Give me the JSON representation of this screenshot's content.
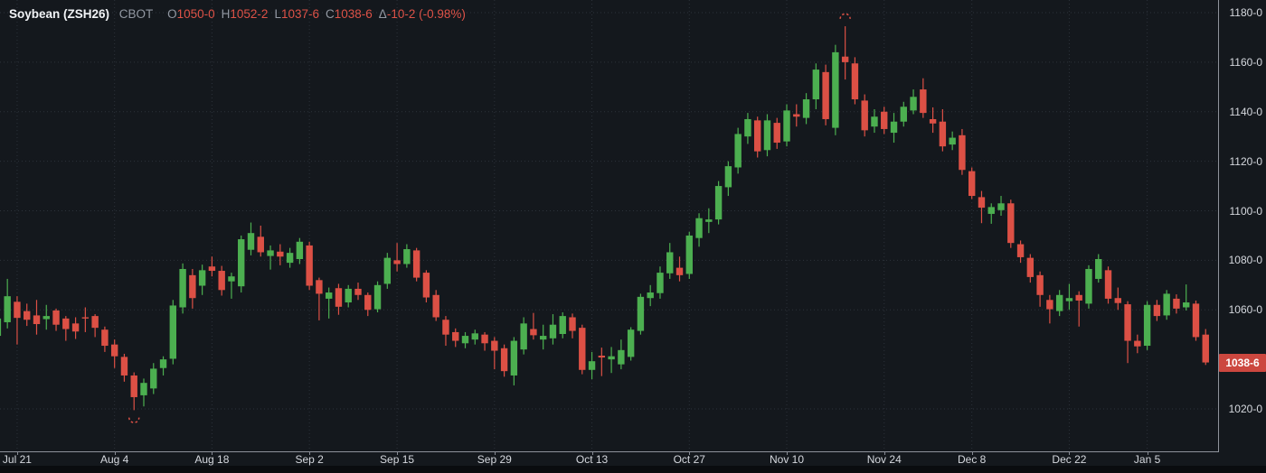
{
  "header": {
    "symbol": "Soybean (ZSH26)",
    "exchange": "CBOT",
    "ohlc": [
      {
        "label": "O",
        "value": "1050-0"
      },
      {
        "label": "H",
        "value": "1052-2"
      },
      {
        "label": "L",
        "value": "1037-6"
      },
      {
        "label": "C",
        "value": "1038-6"
      }
    ],
    "change": {
      "label": "Δ",
      "value": "-10-2 (-0.98%)"
    }
  },
  "colors": {
    "background": "#14181d",
    "up": "#4caf50",
    "down": "#dc5045",
    "header_value_red": "#dd5247",
    "badge_bg": "#cc473f",
    "axis_text": "#d5d8de",
    "grid": "#2c323a",
    "axis_line": "#8e929b"
  },
  "price_axis": {
    "labels": [
      {
        "text": "1180-0",
        "value": 1180
      },
      {
        "text": "1160-0",
        "value": 1160
      },
      {
        "text": "1140-0",
        "value": 1140
      },
      {
        "text": "1120-0",
        "value": 1120
      },
      {
        "text": "1100-0",
        "value": 1100
      },
      {
        "text": "1080-0",
        "value": 1080
      },
      {
        "text": "1060-0",
        "value": 1060
      },
      {
        "text": "1020-0",
        "value": 1020
      }
    ],
    "last_price_badge": {
      "text": "1038-6",
      "value": 1038.75
    }
  },
  "time_axis": {
    "labels": [
      {
        "text": "Jul 21",
        "index": 2
      },
      {
        "text": "Aug 4",
        "index": 12
      },
      {
        "text": "Aug 18",
        "index": 22
      },
      {
        "text": "Sep 2",
        "index": 32
      },
      {
        "text": "Sep 15",
        "index": 41
      },
      {
        "text": "Sep 29",
        "index": 51
      },
      {
        "text": "Oct 13",
        "index": 61
      },
      {
        "text": "Oct 27",
        "index": 71
      },
      {
        "text": "Nov 10",
        "index": 81
      },
      {
        "text": "Nov 24",
        "index": 91
      },
      {
        "text": "Dec 8",
        "index": 100
      },
      {
        "text": "Dec 22",
        "index": 110
      },
      {
        "text": "Jan 5",
        "index": 118
      }
    ]
  },
  "chart_data": {
    "type": "candlestick",
    "title": "Soybean (ZSH26) CBOT daily candlestick chart",
    "ylabel": "Price (cents per bushel, eighths)",
    "y_axis": {
      "min": 1020,
      "max": 1180,
      "step": 20
    },
    "grid": "dotted",
    "columns": [
      "date",
      "open",
      "high",
      "low",
      "close"
    ],
    "rows": [
      [
        "Jul 17",
        1049.5,
        1057.5,
        1047.5,
        1056.5
      ],
      [
        "Jul 18",
        1055,
        1072.5,
        1052.5,
        1065.5
      ],
      [
        "Jul 21",
        1063.25,
        1065.5,
        1046,
        1056.75
      ],
      [
        "Jul 22",
        1059.5,
        1062.5,
        1053.5,
        1056
      ],
      [
        "Jul 23",
        1057.75,
        1064,
        1050,
        1054.25
      ],
      [
        "Jul 24",
        1056.25,
        1062,
        1052,
        1057.5
      ],
      [
        "Jul 25",
        1059.75,
        1060.5,
        1051.5,
        1054
      ],
      [
        "Jul 28",
        1056.5,
        1057.5,
        1047.5,
        1052.25
      ],
      [
        "Jul 29",
        1054.5,
        1057,
        1048.25,
        1051.25
      ],
      [
        "Jul 30",
        1057,
        1061,
        1051,
        1056.5
      ],
      [
        "Jul 31",
        1057.5,
        1058.25,
        1049,
        1052.75
      ],
      [
        "Aug 1",
        1052,
        1053.25,
        1043,
        1045.5
      ],
      [
        "Aug 4",
        1046,
        1048,
        1036.5,
        1041.25
      ],
      [
        "Aug 5",
        1041,
        1042.25,
        1031,
        1033.5
      ],
      [
        "Aug 6",
        1033.5,
        1034.75,
        1019.5,
        1024.75
      ],
      [
        "Aug 7",
        1025.5,
        1032.25,
        1021,
        1030.5
      ],
      [
        "Aug 8",
        1028.25,
        1038.5,
        1026,
        1036.25
      ],
      [
        "Aug 11",
        1036.5,
        1041.25,
        1033.5,
        1040
      ],
      [
        "Aug 12",
        1040.25,
        1064,
        1038,
        1061.75
      ],
      [
        "Aug 13",
        1061,
        1078.75,
        1058.5,
        1076.5
      ],
      [
        "Aug 14",
        1074,
        1076.5,
        1060.5,
        1064.75
      ],
      [
        "Aug 15",
        1069.75,
        1078.25,
        1066,
        1076
      ],
      [
        "Aug 18",
        1077.5,
        1081.5,
        1073.5,
        1075.75
      ],
      [
        "Aug 19",
        1075.75,
        1077.75,
        1065.75,
        1068
      ],
      [
        "Aug 20",
        1071.5,
        1075,
        1064.5,
        1073.5
      ],
      [
        "Aug 21",
        1069.5,
        1090,
        1067,
        1088.5
      ],
      [
        "Aug 22",
        1084.25,
        1095.25,
        1082,
        1091
      ],
      [
        "Aug 25",
        1089.5,
        1094,
        1081.5,
        1083.25
      ],
      [
        "Aug 26",
        1081.75,
        1086,
        1076.25,
        1084
      ],
      [
        "Aug 27",
        1083.5,
        1086.5,
        1078,
        1081.5
      ],
      [
        "Aug 28",
        1079,
        1085,
        1077,
        1083
      ],
      [
        "Aug 29",
        1080.5,
        1089,
        1078.5,
        1087.5
      ],
      [
        "Sep 2",
        1086,
        1087.5,
        1068,
        1069.75
      ],
      [
        "Sep 3",
        1072,
        1073,
        1055.75,
        1066.5
      ],
      [
        "Sep 4",
        1064.5,
        1069,
        1056.5,
        1067
      ],
      [
        "Sep 5",
        1068.75,
        1070.5,
        1058,
        1061.25
      ],
      [
        "Sep 8",
        1063,
        1070,
        1061,
        1068.5
      ],
      [
        "Sep 9",
        1068.5,
        1071,
        1064,
        1066
      ],
      [
        "Sep 10",
        1066,
        1067,
        1057.5,
        1060
      ],
      [
        "Sep 11",
        1060.25,
        1071.5,
        1059,
        1070
      ],
      [
        "Sep 12",
        1070.5,
        1083,
        1068.5,
        1081
      ],
      [
        "Sep 15",
        1080,
        1087,
        1075.5,
        1078.5
      ],
      [
        "Sep 16",
        1078.5,
        1086.5,
        1077,
        1084.5
      ],
      [
        "Sep 17",
        1084,
        1085,
        1071.5,
        1073
      ],
      [
        "Sep 18",
        1075,
        1076,
        1063,
        1065
      ],
      [
        "Sep 19",
        1066,
        1068,
        1055.5,
        1057
      ],
      [
        "Sep 22",
        1056,
        1057.5,
        1045.5,
        1050
      ],
      [
        "Sep 23",
        1051,
        1052.5,
        1045,
        1047.5
      ],
      [
        "Sep 24",
        1046.5,
        1051,
        1044.5,
        1049.5
      ],
      [
        "Sep 25",
        1048,
        1052,
        1046,
        1050.5
      ],
      [
        "Sep 26",
        1050,
        1051,
        1043.5,
        1046.5
      ],
      [
        "Sep 29",
        1047.5,
        1049,
        1036,
        1043.5
      ],
      [
        "Sep 30",
        1044.5,
        1046,
        1033,
        1035.25
      ],
      [
        "Oct 1",
        1033.5,
        1049,
        1029.5,
        1047.5
      ],
      [
        "Oct 2",
        1044,
        1057,
        1042,
        1054.5
      ],
      [
        "Oct 3",
        1052.25,
        1058.75,
        1048,
        1049.75
      ],
      [
        "Oct 6",
        1048,
        1054,
        1044,
        1049.5
      ],
      [
        "Oct 7",
        1048.5,
        1058.25,
        1046,
        1054
      ],
      [
        "Oct 8",
        1050.25,
        1059,
        1048.5,
        1057.5
      ],
      [
        "Oct 9",
        1057,
        1058.5,
        1048.5,
        1051.5
      ],
      [
        "Oct 10",
        1052.75,
        1054,
        1034,
        1035.75
      ],
      [
        "Oct 13",
        1035.75,
        1043,
        1032,
        1039.25
      ],
      [
        "Oct 14",
        1041.5,
        1044.75,
        1033.25,
        1040.75
      ],
      [
        "Oct 15",
        1040,
        1045,
        1034.5,
        1041.25
      ],
      [
        "Oct 16",
        1038,
        1048,
        1036,
        1043.75
      ],
      [
        "Oct 17",
        1041,
        1053,
        1039.5,
        1052
      ],
      [
        "Oct 20",
        1051.5,
        1066.5,
        1050,
        1065.25
      ],
      [
        "Oct 21",
        1064.75,
        1070,
        1061.5,
        1067
      ],
      [
        "Oct 22",
        1066.75,
        1077.5,
        1064.5,
        1075
      ],
      [
        "Oct 23",
        1074.75,
        1087,
        1072.5,
        1083.25
      ],
      [
        "Oct 24",
        1077,
        1081.5,
        1071.5,
        1074
      ],
      [
        "Oct 27",
        1074.5,
        1091.5,
        1072.5,
        1090
      ],
      [
        "Oct 28",
        1089,
        1099,
        1085.5,
        1097
      ],
      [
        "Oct 29",
        1095.5,
        1101,
        1091,
        1096.5
      ],
      [
        "Oct 30",
        1096.5,
        1112,
        1094.5,
        1110
      ],
      [
        "Oct 31",
        1109.5,
        1120,
        1106,
        1118
      ],
      [
        "Nov 3",
        1117.5,
        1133.5,
        1115,
        1131
      ],
      [
        "Nov 4",
        1130,
        1139.5,
        1127,
        1137
      ],
      [
        "Nov 5",
        1136.5,
        1138,
        1121.5,
        1124
      ],
      [
        "Nov 6",
        1124.5,
        1139,
        1122,
        1136.5
      ],
      [
        "Nov 7",
        1135.5,
        1137.5,
        1125,
        1127.5
      ],
      [
        "Nov 10",
        1128,
        1143,
        1126,
        1140.5
      ],
      [
        "Nov 11",
        1139,
        1143,
        1134,
        1138
      ],
      [
        "Nov 12",
        1137.5,
        1147.5,
        1135,
        1145
      ],
      [
        "Nov 13",
        1145,
        1159.5,
        1141,
        1157
      ],
      [
        "Nov 14",
        1156,
        1159,
        1134.5,
        1137
      ],
      [
        "Nov 17",
        1133.5,
        1167,
        1130.5,
        1164
      ],
      [
        "Nov 18",
        1162.25,
        1174.5,
        1153,
        1160
      ],
      [
        "Nov 19",
        1159.5,
        1162,
        1143,
        1145
      ],
      [
        "Nov 20",
        1144.5,
        1147,
        1130,
        1132.5
      ],
      [
        "Nov 21",
        1134,
        1141,
        1131.5,
        1138
      ],
      [
        "Nov 24",
        1140,
        1142,
        1131,
        1133
      ],
      [
        "Nov 25",
        1131.5,
        1139.5,
        1127.5,
        1136
      ],
      [
        "Nov 26",
        1136,
        1144,
        1134,
        1142
      ],
      [
        "Nov 28",
        1140.5,
        1149,
        1139,
        1146
      ],
      [
        "Dec 1",
        1149,
        1153.5,
        1137.5,
        1139.5
      ],
      [
        "Dec 2",
        1137,
        1141.75,
        1131.5,
        1135.25
      ],
      [
        "Dec 3",
        1136,
        1141,
        1124,
        1126
      ],
      [
        "Dec 4",
        1126.75,
        1132,
        1124.5,
        1129.5
      ],
      [
        "Dec 5",
        1130.5,
        1133,
        1114.5,
        1116.5
      ],
      [
        "Dec 8",
        1116,
        1117.5,
        1104.75,
        1106
      ],
      [
        "Dec 9",
        1105.5,
        1108,
        1095,
        1101.25
      ],
      [
        "Dec 10",
        1098.75,
        1103,
        1094.75,
        1101.5
      ],
      [
        "Dec 11",
        1100.25,
        1106,
        1098,
        1103
      ],
      [
        "Dec 12",
        1103,
        1104.5,
        1085,
        1087
      ],
      [
        "Dec 15",
        1086.5,
        1088,
        1079,
        1081.25
      ],
      [
        "Dec 16",
        1081,
        1082.5,
        1071,
        1073.25
      ],
      [
        "Dec 17",
        1074,
        1075.5,
        1061.25,
        1066
      ],
      [
        "Dec 18",
        1064,
        1066,
        1054.5,
        1060.25
      ],
      [
        "Dec 19",
        1059.5,
        1068,
        1057.5,
        1066
      ],
      [
        "Dec 22",
        1063.5,
        1070.5,
        1060,
        1064.75
      ],
      [
        "Dec 23",
        1066,
        1067.5,
        1053.25,
        1063.75
      ],
      [
        "Dec 24",
        1062.5,
        1078,
        1060.5,
        1076.5
      ],
      [
        "Dec 26",
        1072.5,
        1082.5,
        1071,
        1080.5
      ],
      [
        "Dec 29",
        1076,
        1077.5,
        1062.5,
        1064.5
      ],
      [
        "Dec 30",
        1064.75,
        1069,
        1060,
        1062.75
      ],
      [
        "Dec 31",
        1062.25,
        1063.5,
        1038.5,
        1047.5
      ],
      [
        "Jan 2",
        1047.5,
        1050,
        1042.5,
        1045.25
      ],
      [
        "Jan 5",
        1045.5,
        1063.5,
        1043.75,
        1062
      ],
      [
        "Jan 6",
        1062,
        1064,
        1055.5,
        1057.5
      ],
      [
        "Jan 7",
        1057.75,
        1068,
        1056,
        1066.5
      ],
      [
        "Jan 8",
        1064.5,
        1066.25,
        1058.5,
        1060.5
      ],
      [
        "Jan 9",
        1061,
        1070.25,
        1059.75,
        1063
      ],
      [
        "Jan 12",
        1062.5,
        1063.75,
        1047.5,
        1049
      ],
      [
        "Jan 13",
        1050,
        1052.25,
        1037.75,
        1038.75
      ]
    ],
    "markers": [
      {
        "type": "swing-high",
        "index": 87,
        "price": 1177.5
      },
      {
        "type": "swing-low",
        "index": 14,
        "price": 1016.5
      }
    ],
    "legend_position": "none"
  }
}
